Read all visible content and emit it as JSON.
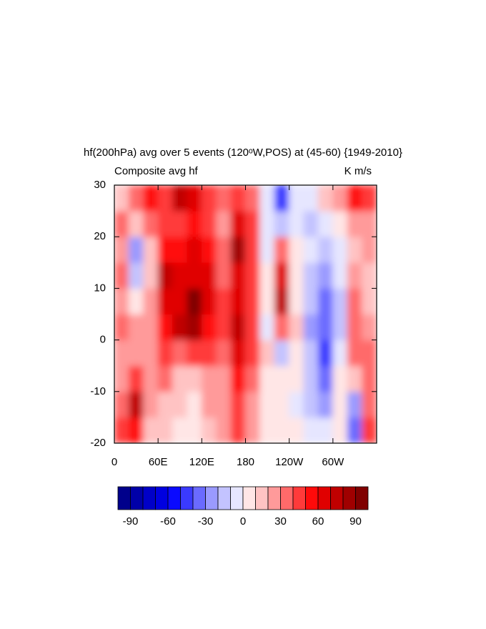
{
  "chart_data": {
    "type": "contour",
    "title": "hf(200hPa) avg over 5 events (120ᵒW,POS) at (45-60) {1949-2010}",
    "left_subtitle": "Composite avg hf",
    "right_subtitle": "K m/s",
    "x": [
      10,
      30,
      50,
      70,
      90,
      110,
      130,
      150,
      170,
      190,
      210,
      230,
      250,
      270,
      290,
      310,
      330,
      350
    ],
    "y": [
      -17.5,
      -12.5,
      -7.5,
      -2.5,
      2.5,
      7.5,
      12.5,
      17.5,
      22.5,
      27.5
    ],
    "z": [
      [
        40,
        50,
        10,
        10,
        5,
        0,
        15,
        20,
        40,
        20,
        5,
        0,
        5,
        -10,
        -10,
        0,
        -40,
        40
      ],
      [
        30,
        70,
        20,
        10,
        10,
        5,
        20,
        20,
        40,
        25,
        5,
        5,
        -5,
        -20,
        -30,
        5,
        -30,
        30
      ],
      [
        20,
        40,
        20,
        30,
        15,
        10,
        20,
        25,
        50,
        30,
        5,
        0,
        0,
        -15,
        -40,
        5,
        10,
        30
      ],
      [
        20,
        20,
        20,
        40,
        30,
        40,
        40,
        30,
        60,
        40,
        10,
        -20,
        5,
        -20,
        -50,
        -10,
        30,
        30
      ],
      [
        30,
        20,
        20,
        50,
        70,
        80,
        50,
        40,
        70,
        40,
        -10,
        30,
        10,
        -30,
        -40,
        -15,
        30,
        20
      ],
      [
        20,
        5,
        20,
        60,
        60,
        90,
        60,
        40,
        60,
        40,
        0,
        70,
        5,
        -20,
        -40,
        -20,
        30,
        10
      ],
      [
        30,
        -20,
        10,
        70,
        60,
        60,
        60,
        30,
        60,
        40,
        0,
        60,
        5,
        -20,
        -30,
        -10,
        20,
        10
      ],
      [
        20,
        -30,
        10,
        50,
        50,
        60,
        50,
        30,
        80,
        40,
        -10,
        30,
        0,
        -10,
        -20,
        -5,
        10,
        20
      ],
      [
        30,
        10,
        30,
        40,
        40,
        50,
        40,
        20,
        60,
        40,
        -10,
        -20,
        -10,
        -20,
        -10,
        0,
        20,
        20
      ],
      [
        10,
        30,
        50,
        40,
        70,
        60,
        40,
        30,
        40,
        30,
        -10,
        -50,
        -10,
        -10,
        10,
        20,
        50,
        40
      ]
    ],
    "xlim": [
      0,
      360
    ],
    "xticks": [
      0,
      {
        "value": 60,
        "label": "60E"
      },
      {
        "value": 120,
        "label": "120E"
      },
      180,
      {
        "value": 240,
        "label": "120W"
      },
      {
        "value": 300,
        "label": "60W"
      }
    ],
    "ylim": [
      -20,
      30
    ],
    "yticks": [
      -20,
      -10,
      0,
      10,
      20,
      30
    ],
    "levels": [
      -90,
      -80,
      -70,
      -60,
      -50,
      -40,
      -30,
      -20,
      -10,
      0,
      10,
      20,
      30,
      40,
      50,
      60,
      70,
      80,
      90
    ],
    "colors": [
      "#00008b",
      "#0000a8",
      "#0000c8",
      "#0000e0",
      "#0a0aff",
      "#3a3aff",
      "#6a6aff",
      "#9a9aff",
      "#c3c3ff",
      "#e6e6ff",
      "#ffe6e6",
      "#ffc3c3",
      "#ff9a9a",
      "#ff6a6a",
      "#ff3a3a",
      "#ff0a0a",
      "#e00000",
      "#c00000",
      "#a00000",
      "#800000"
    ],
    "colorbar_ticks": [
      -90,
      -60,
      -30,
      0,
      30,
      60,
      90
    ]
  }
}
